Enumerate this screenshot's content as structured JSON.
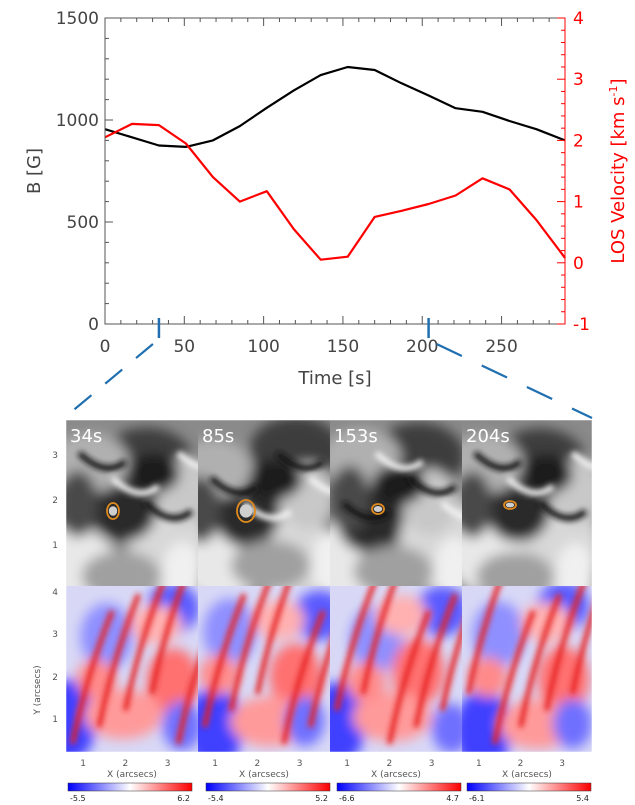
{
  "chart_data": [
    {
      "type": "line",
      "xlabel": "Time [s]",
      "ylabel": "B [G]",
      "y2label": "LOS Velocity [km s",
      "y2label_sup": "-1",
      "y2label_close": "]",
      "xlim": [
        0,
        290
      ],
      "ylim": [
        0,
        1500
      ],
      "y2lim": [
        -1,
        4
      ],
      "xticks": [
        0,
        50,
        100,
        150,
        200,
        250
      ],
      "yticks": [
        0,
        500,
        1000,
        1500
      ],
      "y2ticks": [
        -1,
        0,
        1,
        2,
        3,
        4
      ],
      "grid": false,
      "colors": {
        "B": "#000000",
        "LOS": "#ff0000",
        "axis2": "#ff0000",
        "axis": "#555555"
      },
      "series": [
        {
          "axis": "left",
          "color": "#000000",
          "x": [
            0,
            17,
            34,
            51,
            68,
            85,
            102,
            119,
            136,
            153,
            170,
            187,
            204,
            221,
            238,
            255,
            272,
            290
          ],
          "values": [
            955,
            915,
            875,
            868,
            900,
            970,
            1060,
            1145,
            1220,
            1260,
            1245,
            1180,
            1120,
            1058,
            1040,
            995,
            955,
            900
          ]
        },
        {
          "axis": "right",
          "color": "#ff0000",
          "x": [
            0,
            17,
            34,
            51,
            68,
            85,
            102,
            119,
            136,
            153,
            170,
            187,
            204,
            221,
            238,
            255,
            272,
            290
          ],
          "values": [
            2.05,
            2.27,
            2.25,
            1.95,
            1.4,
            1.0,
            1.17,
            0.55,
            0.05,
            0.1,
            0.75,
            0.85,
            0.96,
            1.1,
            1.38,
            1.2,
            0.7,
            0.08
          ]
        }
      ],
      "zoom_markers": [
        34,
        204
      ]
    },
    {
      "type": "heatmap",
      "panels": [
        {
          "time_label": "34s",
          "colorbar_min": "-5.5",
          "colorbar_max": "6.2"
        },
        {
          "time_label": "85s",
          "colorbar_min": "-5.4",
          "colorbar_max": "5.2"
        },
        {
          "time_label": "153s",
          "colorbar_min": "-6.6",
          "colorbar_max": "4.7"
        },
        {
          "time_label": "204s",
          "colorbar_min": "-6.1",
          "colorbar_max": "5.4"
        }
      ],
      "xlabel": "X (arcsecs)",
      "ylabel": "Y (arcsecs)",
      "xticks": [
        "1",
        "2",
        "3"
      ],
      "yticks_top": [
        "1",
        "2",
        "3"
      ],
      "yticks_bottom": [
        "1",
        "2",
        "3",
        "4"
      ],
      "colormap_top": "grayscale",
      "colormap_bottom": [
        "#0000ff",
        "#ffffff",
        "#ff0000"
      ],
      "contour_color": "#e08a1e",
      "zoom_line_color": "#1f6fb0"
    }
  ]
}
